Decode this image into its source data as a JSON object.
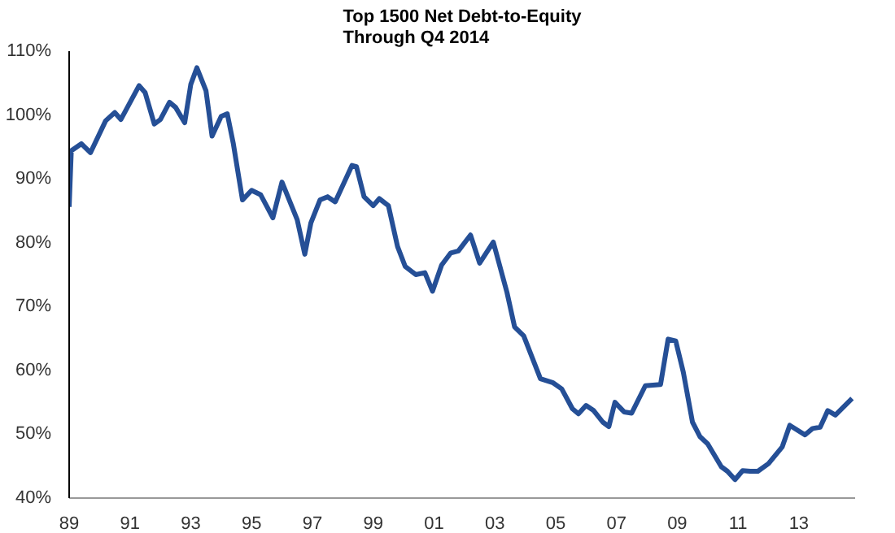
{
  "chart_data": {
    "type": "line",
    "title": "Top 1500 Net Debt-to-Equity\nThrough Q4 2014",
    "x": [
      1989.0,
      1989.07,
      1989.4,
      1989.7,
      1990.2,
      1990.5,
      1990.7,
      1991.3,
      1991.5,
      1991.8,
      1992.0,
      1992.3,
      1992.5,
      1992.8,
      1993.0,
      1993.2,
      1993.5,
      1993.7,
      1994.0,
      1994.2,
      1994.4,
      1994.7,
      1995.0,
      1995.3,
      1995.7,
      1996.0,
      1996.5,
      1996.75,
      1996.95,
      1997.25,
      1997.5,
      1997.75,
      1998.3,
      1998.45,
      1998.7,
      1999.0,
      1999.2,
      1999.5,
      1999.8,
      2000.05,
      2000.4,
      2000.7,
      2000.95,
      2001.25,
      2001.55,
      2001.8,
      2002.2,
      2002.5,
      2002.95,
      2003.4,
      2003.65,
      2003.95,
      2004.5,
      2004.9,
      2005.2,
      2005.55,
      2005.75,
      2006.0,
      2006.25,
      2006.55,
      2006.75,
      2006.95,
      2007.25,
      2007.5,
      2007.95,
      2008.45,
      2008.7,
      2008.95,
      2009.2,
      2009.5,
      2009.75,
      2010.0,
      2010.45,
      2010.65,
      2010.9,
      2011.15,
      2011.4,
      2011.65,
      2012.0,
      2012.45,
      2012.7,
      2013.2,
      2013.45,
      2013.7,
      2013.95,
      2014.2,
      2014.75
    ],
    "series": [
      {
        "color": "#254f96",
        "values": [
          85.6,
          94.4,
          95.5,
          94.1,
          99.1,
          100.4,
          99.3,
          104.6,
          103.5,
          98.6,
          99.3,
          102.0,
          101.2,
          98.8,
          104.8,
          107.4,
          103.8,
          96.7,
          99.8,
          100.2,
          95.5,
          86.7,
          88.2,
          87.5,
          83.9,
          89.5,
          83.6,
          78.2,
          83.1,
          86.7,
          87.2,
          86.4,
          92.1,
          91.9,
          87.2,
          85.8,
          86.9,
          85.8,
          79.4,
          76.3,
          75.0,
          75.3,
          72.4,
          76.5,
          78.4,
          78.7,
          81.2,
          76.8,
          80.1,
          72.2,
          66.8,
          65.4,
          58.7,
          58.1,
          57.1,
          54.0,
          53.2,
          54.5,
          53.7,
          51.9,
          51.2,
          55.0,
          53.5,
          53.3,
          57.6,
          57.8,
          64.9,
          64.6,
          59.7,
          51.9,
          49.6,
          48.5,
          44.9,
          44.2,
          42.9,
          44.3,
          44.2,
          44.2,
          45.4,
          48.0,
          51.4,
          49.9,
          50.9,
          51.1,
          53.7,
          53.0,
          55.6
        ]
      }
    ],
    "xlim": [
      1989.0,
      2014.85
    ],
    "ylim": [
      40,
      110
    ],
    "xticks": [
      {
        "value": 1989,
        "label": "89"
      },
      {
        "value": 1991,
        "label": "91"
      },
      {
        "value": 1993,
        "label": "93"
      },
      {
        "value": 1995,
        "label": "95"
      },
      {
        "value": 1997,
        "label": "97"
      },
      {
        "value": 1999,
        "label": "99"
      },
      {
        "value": 2001,
        "label": "01"
      },
      {
        "value": 2003,
        "label": "03"
      },
      {
        "value": 2005,
        "label": "05"
      },
      {
        "value": 2007,
        "label": "07"
      },
      {
        "value": 2009,
        "label": "09"
      },
      {
        "value": 2011,
        "label": "11"
      },
      {
        "value": 2013,
        "label": "13"
      }
    ],
    "yticks": [
      {
        "value": 40,
        "label": "40%"
      },
      {
        "value": 50,
        "label": "50%"
      },
      {
        "value": 60,
        "label": "60%"
      },
      {
        "value": 70,
        "label": "70%"
      },
      {
        "value": 80,
        "label": "80%"
      },
      {
        "value": 90,
        "label": "90%"
      },
      {
        "value": 100,
        "label": "100%"
      },
      {
        "value": 110,
        "label": "110%"
      }
    ],
    "grid": false,
    "marker": "none",
    "line_style": "solid"
  }
}
